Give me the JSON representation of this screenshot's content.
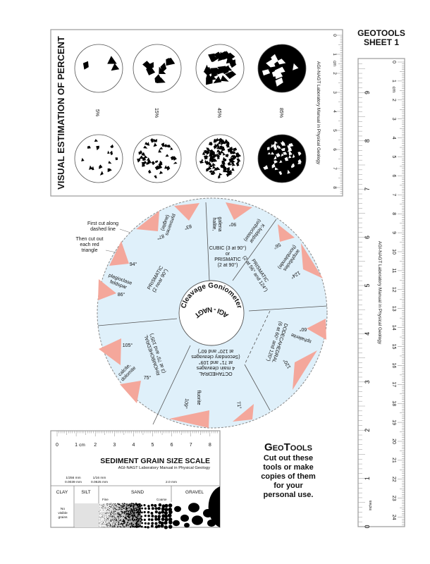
{
  "sheet_header": {
    "line1": "GEOTOOLS",
    "line2": "SHEET 1"
  },
  "percent_card": {
    "title": "VISUAL ESTIMATION OF PERCENT",
    "percents": [
      "5%",
      "15%",
      "45%",
      "85%"
    ],
    "percent_values": [
      5,
      15,
      45,
      85
    ],
    "credit": "AGI-NAGT Laboratory Manual in Physical Geology",
    "ruler_labels": [
      "0",
      "1",
      "2",
      "3",
      "4",
      "5",
      "6",
      "7",
      "8"
    ],
    "ruler_unit": "cm"
  },
  "long_ruler": {
    "cm_labels": [
      "0",
      "1",
      "2",
      "3",
      "4",
      "5",
      "6",
      "7",
      "8",
      "9",
      "10",
      "11",
      "12",
      "13",
      "14",
      "15",
      "16",
      "17",
      "18",
      "19",
      "20",
      "21",
      "22",
      "23",
      "24"
    ],
    "cm_unit": "cm",
    "inch_labels": [
      "0",
      "1",
      "2",
      "3",
      "4",
      "5",
      "6",
      "7",
      "8",
      "9"
    ],
    "inch_unit": "inches",
    "credit": "AGI-NAGT Laboratory Manual in Physical Geology"
  },
  "goniometer": {
    "title": "Cleavage Goniometer",
    "subtitle": "AGI - NAGT",
    "instructions": {
      "first": [
        "First cut along",
        "dashed line"
      ],
      "then": [
        "Then cut out",
        "each red",
        "triangle"
      ]
    },
    "sectors": {
      "cubic": [
        "CUBIC (3 at 90°)",
        "or",
        "PRISMATIC",
        "(2 at 90°)"
      ],
      "prismatic_56": [
        "PRISMATIC",
        "(2 at 56° and 124°)"
      ],
      "dodecahedral": [
        "DODECAHEDRAL",
        "(6 at 60° and 120°)"
      ],
      "octahedral": [
        "OCTAHEDRAL",
        "4 main cleavages",
        "at 71° and 109°",
        "(Secondary cleavages",
        "at 120° and 60°)"
      ],
      "rhombohedral": [
        "RHOMBOHEDRAL",
        "(3 at 75° and 105°)"
      ],
      "prismatic_90": [
        "PRISMATIC",
        "(2 near 90°)"
      ]
    },
    "minerals": {
      "halite": [
        "halite,",
        "galena"
      ],
      "kfeldspar": [
        "K-feldspar",
        "(orthoclase)"
      ],
      "amphiboles": [
        "amphiboles",
        "(hornblende)"
      ],
      "sphalerite": "sphalerite",
      "fluorite": "fluorite",
      "calcite": [
        "calcite,",
        "dolomite"
      ],
      "plagioclase": [
        "plagioclase",
        "feldspar"
      ],
      "pyroxenes": [
        "pyroxenes",
        "(augite)"
      ]
    },
    "angles": {
      "a83": "83°",
      "a87": "87°",
      "a90": "90°",
      "a56": "56°",
      "a124": "124°",
      "a60": "60°",
      "a120": "120°",
      "a71": "71°",
      "a109": "109°",
      "a75": "75°",
      "a105": "105°",
      "a86": "86°",
      "a94": "94°"
    },
    "colors": {
      "sector_fill": "#dff0fa",
      "triangle_fill": "#f4a79b",
      "line": "#555555"
    }
  },
  "grain_card": {
    "ruler_labels": [
      "0",
      "1",
      "2",
      "3",
      "4",
      "5",
      "6",
      "7",
      "8"
    ],
    "ruler_unit": "cm",
    "title": "SEDIMENT GRAIN SIZE SCALE",
    "credit": "AGI-NAGT Laboratory Manual in Physical Geology",
    "sizes": {
      "s1a": "1/256 mm",
      "s1b": "0.0039 mm",
      "s2a": "1/16 mm",
      "s2b": "0.0625 mm",
      "s3": "2.0 mm"
    },
    "classes": [
      "CLAY",
      "SILT",
      "SAND",
      "GRAVEL"
    ],
    "fine": "Fine",
    "coarse": "Coarse",
    "no_grains": [
      "No",
      "visible",
      "grains"
    ]
  },
  "geotools_note": {
    "title": "GeoTools",
    "lines": [
      "Cut out these",
      "tools or make",
      "copies of them",
      "for your",
      "personal use."
    ]
  }
}
